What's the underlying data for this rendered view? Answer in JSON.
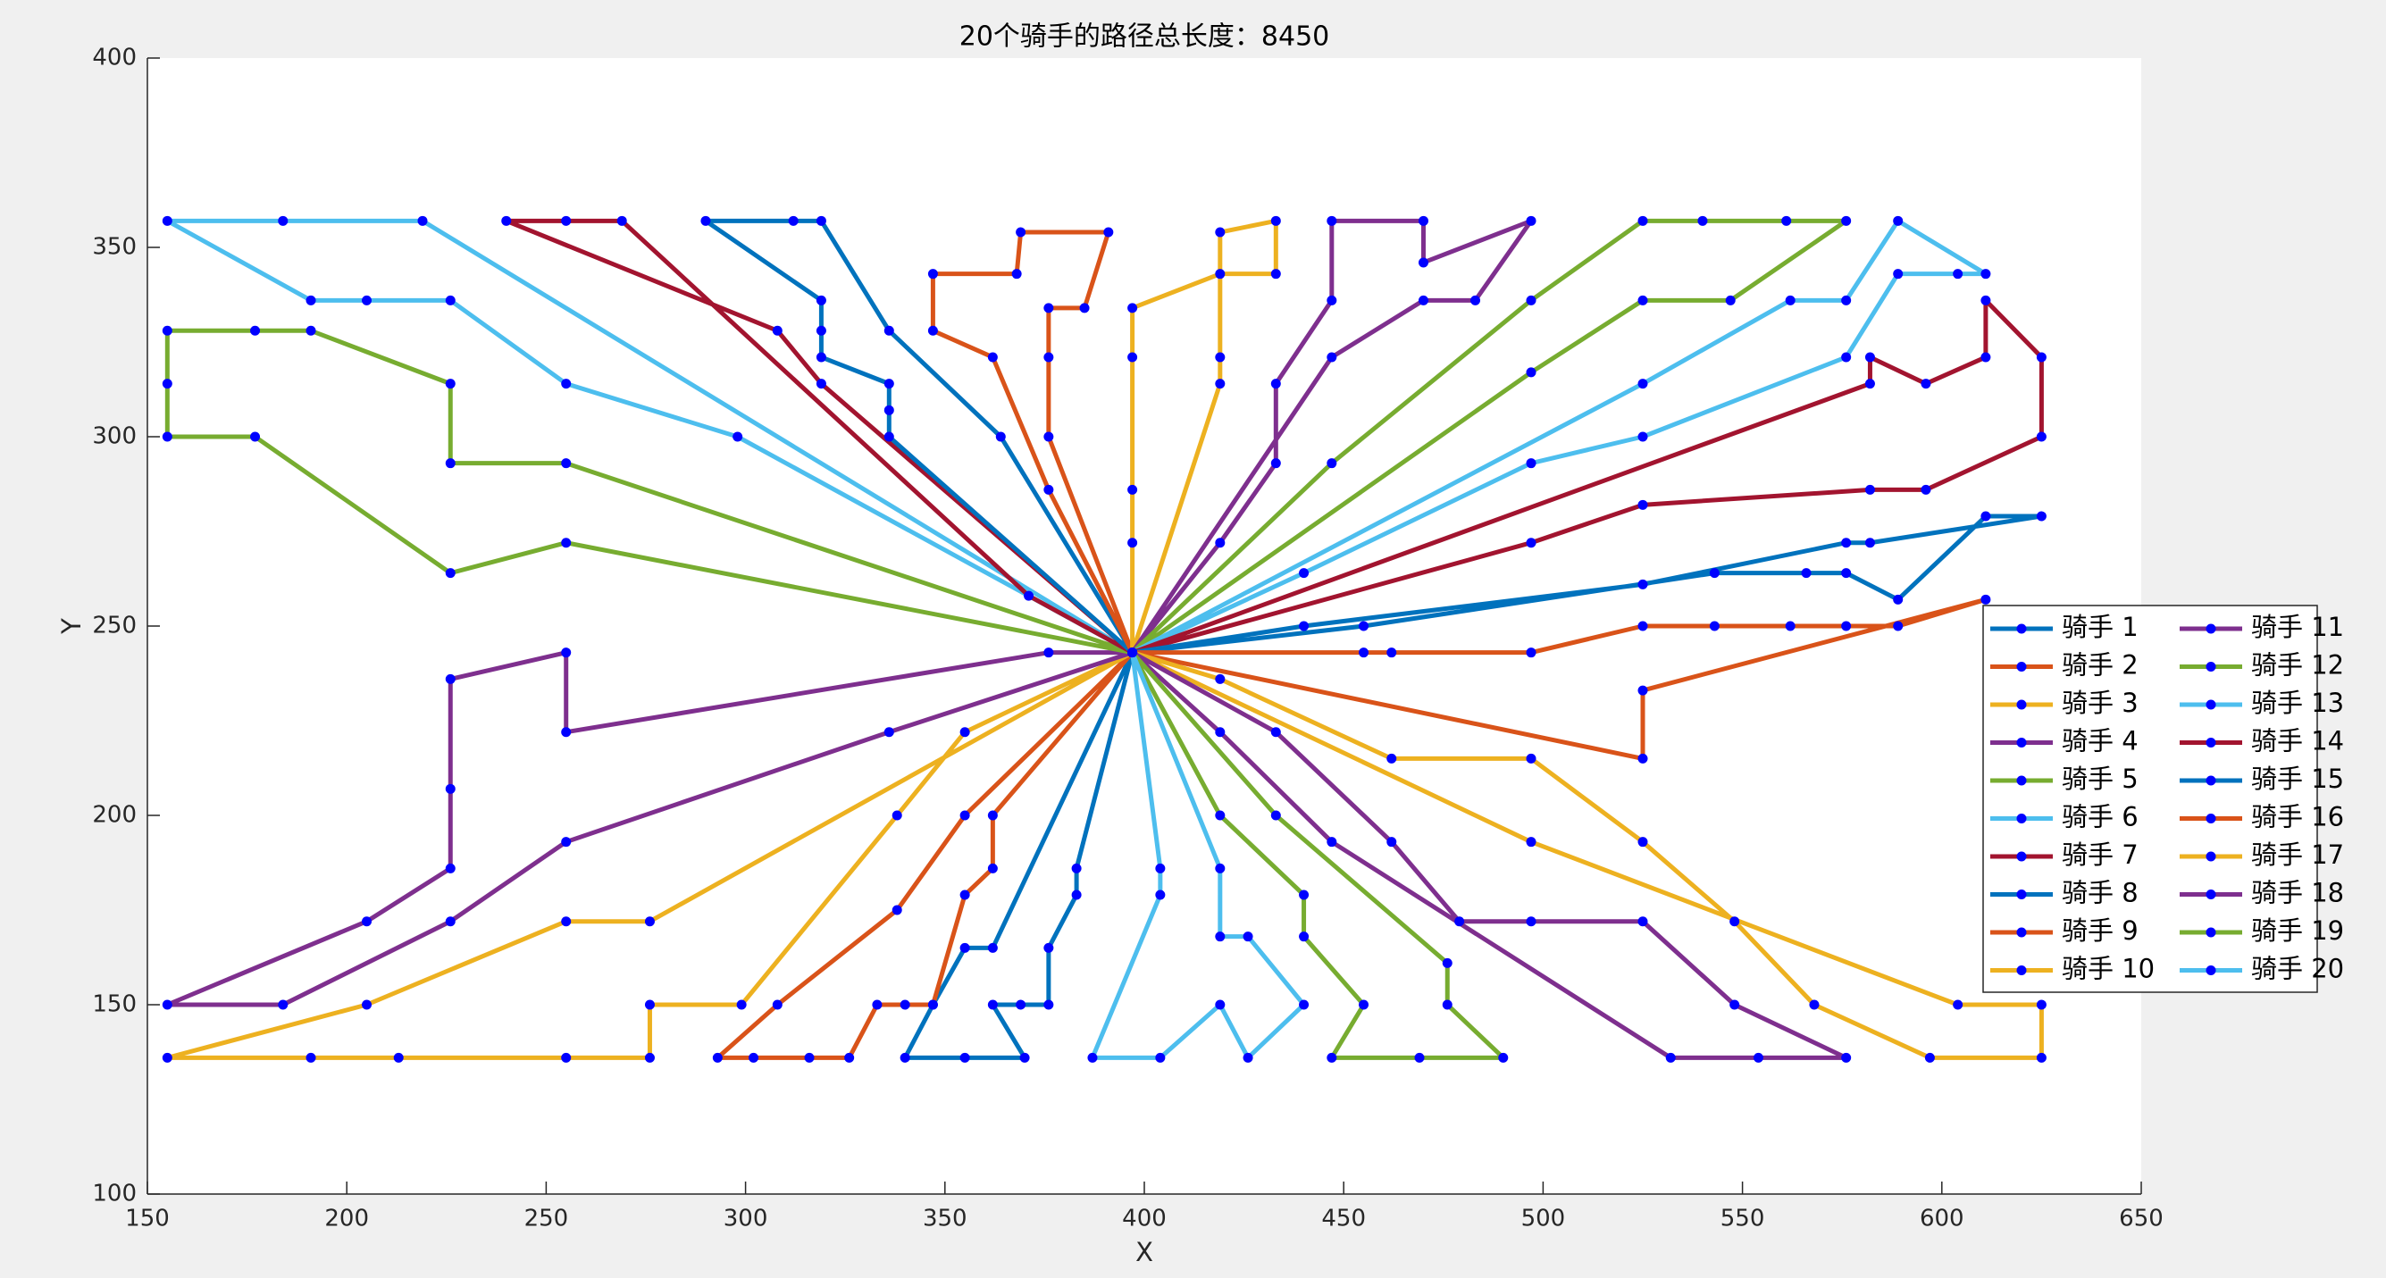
{
  "chart_data": {
    "type": "line",
    "title": "20个骑手的路径总长度：8450",
    "xlabel": "X",
    "ylabel": "Y",
    "xlim": [
      150,
      650
    ],
    "xticks": [
      150,
      200,
      250,
      300,
      350,
      400,
      450,
      500,
      550,
      600,
      650
    ],
    "ylim": [
      100,
      400
    ],
    "yticks": [
      100,
      150,
      200,
      250,
      300,
      350,
      400
    ],
    "legend": "east",
    "marker_color": "#0000ff",
    "series": [
      {
        "name": "骑手 1",
        "color": "#0072bd",
        "x": [
          397,
          383,
          383,
          376,
          376,
          369,
          362,
          370,
          355,
          340,
          347,
          355,
          362,
          397
        ],
        "values": [
          243,
          186,
          179,
          165,
          150,
          150,
          150,
          136,
          136,
          136,
          150,
          165,
          165,
          243
        ]
      },
      {
        "name": "骑手 2",
        "color": "#d95319",
        "x": [
          397,
          362,
          362,
          355,
          347,
          340,
          333,
          326,
          316,
          302,
          293,
          308,
          338,
          355,
          397
        ],
        "values": [
          243,
          200,
          186,
          179,
          150,
          150,
          150,
          136,
          136,
          136,
          136,
          150,
          175,
          200,
          243
        ]
      },
      {
        "name": "骑手 3",
        "color": "#edb120",
        "x": [
          397,
          355,
          338,
          299,
          276,
          276,
          255,
          213,
          191,
          155,
          205,
          255,
          276,
          397
        ],
        "values": [
          243,
          222,
          200,
          150,
          150,
          136,
          136,
          136,
          136,
          136,
          150,
          172,
          172,
          243
        ]
      },
      {
        "name": "骑手 4",
        "color": "#7e2f8e",
        "x": [
          397,
          376,
          255,
          255,
          226,
          226,
          226,
          205,
          155,
          184,
          226,
          255,
          336,
          397
        ],
        "values": [
          243,
          243,
          222,
          243,
          236,
          207,
          186,
          172,
          150,
          150,
          172,
          193,
          222,
          243
        ]
      },
      {
        "name": "骑手 5",
        "color": "#77ac30",
        "x": [
          397,
          255,
          226,
          177,
          155,
          155,
          155,
          177,
          191,
          226,
          226,
          255,
          397
        ],
        "values": [
          243,
          272,
          264,
          300,
          300,
          314,
          328,
          328,
          328,
          314,
          293,
          293,
          243
        ]
      },
      {
        "name": "骑手 6",
        "color": "#4dbeee",
        "x": [
          397,
          219,
          184,
          155,
          191,
          205,
          226,
          255,
          298,
          397
        ],
        "values": [
          243,
          357,
          357,
          357,
          336,
          336,
          336,
          314,
          300,
          243
        ]
      },
      {
        "name": "骑手 7",
        "color": "#a2142f",
        "x": [
          397,
          319,
          308,
          240,
          255,
          269,
          371,
          397
        ],
        "values": [
          243,
          314,
          328,
          357,
          357,
          357,
          258,
          243
        ]
      },
      {
        "name": "骑手 8",
        "color": "#0072bd",
        "x": [
          397,
          336,
          336,
          336,
          319,
          319,
          319,
          290,
          312,
          319,
          336,
          364,
          397
        ],
        "values": [
          243,
          300,
          307,
          314,
          321,
          328,
          336,
          357,
          357,
          357,
          328,
          300,
          243
        ]
      },
      {
        "name": "骑手 9",
        "color": "#d95319",
        "x": [
          397,
          376,
          376,
          376,
          385,
          391,
          369,
          368,
          347,
          347,
          362,
          376,
          397
        ],
        "values": [
          243,
          300,
          321,
          334,
          334,
          354,
          354,
          343,
          343,
          328,
          321,
          286,
          243
        ]
      },
      {
        "name": "骑手 10",
        "color": "#edb120",
        "x": [
          397,
          397,
          397,
          397,
          397,
          419,
          433,
          433,
          419,
          419,
          419,
          397
        ],
        "values": [
          243,
          272,
          286,
          321,
          334,
          343,
          343,
          357,
          354,
          321,
          314,
          243
        ]
      },
      {
        "name": "骑手 11",
        "color": "#7e2f8e",
        "x": [
          397,
          419,
          433,
          433,
          447,
          447,
          470,
          470,
          497,
          483,
          470,
          447,
          397
        ],
        "values": [
          243,
          272,
          293,
          314,
          336,
          357,
          357,
          346,
          357,
          336,
          336,
          321,
          243
        ]
      },
      {
        "name": "骑手 12",
        "color": "#77ac30",
        "x": [
          397,
          497,
          525,
          547,
          576,
          561,
          540,
          525,
          497,
          447,
          397
        ],
        "values": [
          243,
          317,
          336,
          336,
          357,
          357,
          357,
          357,
          336,
          293,
          243
        ]
      },
      {
        "name": "骑手 13",
        "color": "#4dbeee",
        "x": [
          397,
          440,
          497,
          525,
          576,
          589,
          604,
          611,
          589,
          576,
          562,
          525,
          397
        ],
        "values": [
          243,
          264,
          293,
          300,
          321,
          343,
          343,
          343,
          357,
          336,
          336,
          314,
          243
        ]
      },
      {
        "name": "骑手 14",
        "color": "#a2142f",
        "x": [
          397,
          497,
          525,
          582,
          596,
          625,
          625,
          611,
          611,
          596,
          582,
          582,
          397
        ],
        "values": [
          243,
          272,
          282,
          286,
          286,
          300,
          321,
          336,
          321,
          314,
          321,
          314,
          243
        ]
      },
      {
        "name": "骑手 15",
        "color": "#0072bd",
        "x": [
          397,
          455,
          543,
          566,
          576,
          589,
          611,
          625,
          582,
          576,
          525,
          440,
          397
        ],
        "values": [
          243,
          250,
          264,
          264,
          264,
          257,
          279,
          279,
          272,
          272,
          261,
          250,
          243
        ]
      },
      {
        "name": "骑手 16",
        "color": "#d95319",
        "x": [
          397,
          455,
          462,
          497,
          525,
          543,
          562,
          576,
          589,
          611,
          525,
          525,
          397
        ],
        "values": [
          243,
          243,
          243,
          243,
          250,
          250,
          250,
          250,
          250,
          257,
          233,
          215,
          243
        ]
      },
      {
        "name": "骑手 17",
        "color": "#edb120",
        "x": [
          397,
          419,
          462,
          497,
          525,
          548,
          568,
          597,
          625,
          625,
          604,
          497,
          397
        ],
        "values": [
          243,
          236,
          215,
          215,
          193,
          172,
          150,
          136,
          136,
          150,
          150,
          193,
          243
        ]
      },
      {
        "name": "骑手 18",
        "color": "#7e2f8e",
        "x": [
          397,
          433,
          462,
          479,
          497,
          525,
          548,
          576,
          554,
          532,
          447,
          419,
          397
        ],
        "values": [
          243,
          222,
          193,
          172,
          172,
          172,
          150,
          136,
          136,
          136,
          193,
          222,
          243
        ]
      },
      {
        "name": "骑手 19",
        "color": "#77ac30",
        "x": [
          397,
          419,
          440,
          440,
          455,
          447,
          469,
          490,
          476,
          476,
          433,
          397
        ],
        "values": [
          243,
          200,
          179,
          168,
          150,
          136,
          136,
          136,
          150,
          161,
          200,
          243
        ]
      },
      {
        "name": "骑手 20",
        "color": "#4dbeee",
        "x": [
          397,
          404,
          404,
          387,
          404,
          419,
          426,
          440,
          426,
          419,
          419,
          397
        ],
        "values": [
          243,
          186,
          179,
          136,
          136,
          150,
          136,
          150,
          168,
          168,
          186,
          243
        ]
      }
    ]
  }
}
